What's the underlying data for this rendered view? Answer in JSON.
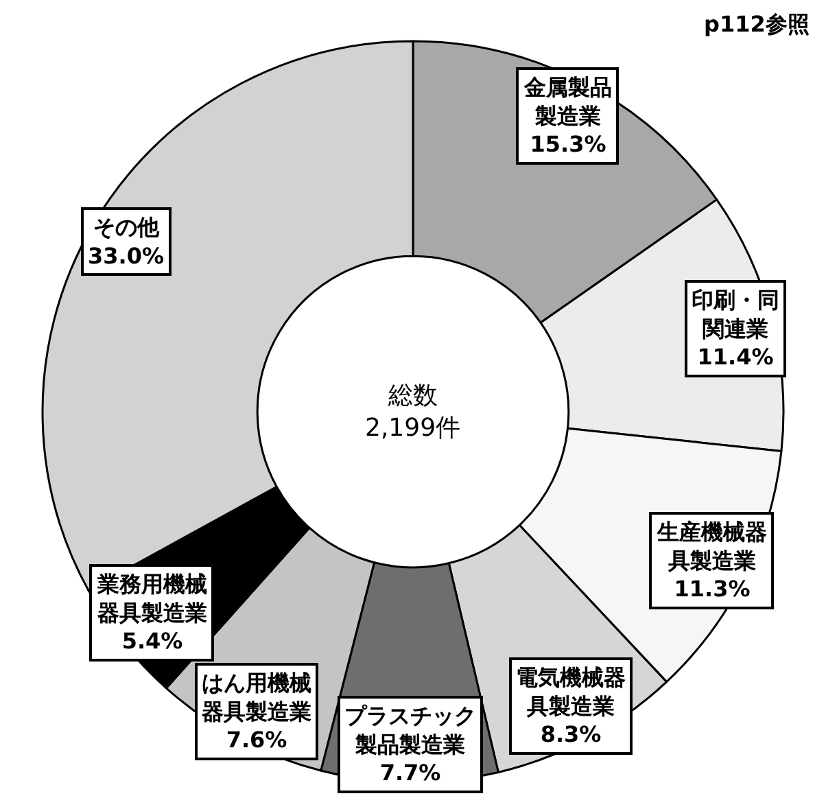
{
  "chart_data": {
    "type": "donut",
    "categories": [
      "金属製品製造業",
      "印刷・同関連業",
      "生産機械器具製造業",
      "電気機械器具製造業",
      "プラスチック製品製造業",
      "はん用機械器具製造業",
      "業務用機械器具製造業",
      "その他"
    ],
    "values": [
      15.3,
      11.4,
      11.3,
      8.3,
      7.7,
      7.6,
      5.4,
      33.0
    ],
    "colors": [
      "#a8a8a8",
      "#ececec",
      "#f6f6f6",
      "#d6d6d6",
      "#6e6e6e",
      "#c4c4c4",
      "#000000",
      "#d2d2d2"
    ],
    "value_labels": [
      "15.3%",
      "11.4%",
      "11.3%",
      "8.3%",
      "7.7%",
      "7.6%",
      "5.4%",
      "33.0%"
    ],
    "annotations": [
      "総数\n2,199件",
      "p112参照"
    ],
    "legend": false
  }
}
